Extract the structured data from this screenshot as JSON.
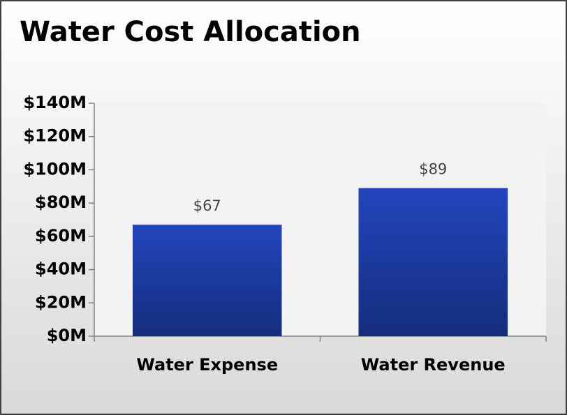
{
  "chart_data": {
    "type": "bar",
    "title": "Water Cost Allocation",
    "categories": [
      "Water Expense",
      "Water Revenue"
    ],
    "values": [
      67,
      89
    ],
    "value_labels": [
      "$67",
      "$89"
    ],
    "color": "#1f3fae",
    "ylim": [
      0,
      140
    ],
    "yticks": [
      {
        "value": 0,
        "label": "$0M"
      },
      {
        "value": 20,
        "label": "$20M"
      },
      {
        "value": 40,
        "label": "$40M"
      },
      {
        "value": 60,
        "label": "$60M"
      },
      {
        "value": 80,
        "label": "$80M"
      },
      {
        "value": 100,
        "label": "$100M"
      },
      {
        "value": 120,
        "label": "$120M"
      },
      {
        "value": 140,
        "label": "$140M"
      }
    ],
    "grid": false
  }
}
